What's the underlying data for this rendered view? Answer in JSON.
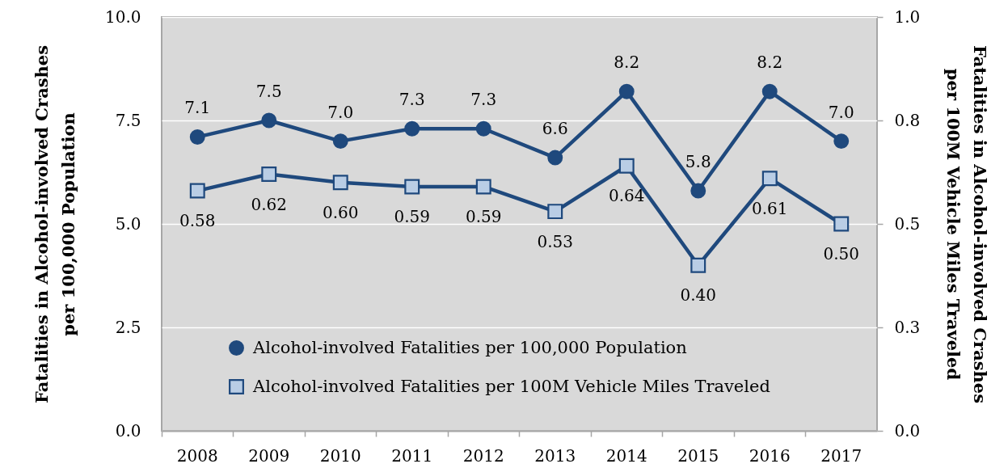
{
  "chart_data": {
    "type": "line",
    "categories": [
      "2008",
      "2009",
      "2010",
      "2011",
      "2012",
      "2013",
      "2014",
      "2015",
      "2016",
      "2017"
    ],
    "ylabel": "Fatalities in Alcohol-involved Crashes\nper 100,000 Population",
    "y2label": "Fatalities in Alcohol-involved Crashes\nper 100M Vehicle Miles Traveled",
    "series": [
      {
        "name": "Alcohol-involved Fatalities per 100,000 Population",
        "color": "#1f497d",
        "marker": "circle",
        "values": [
          7.1,
          7.5,
          7.0,
          7.3,
          7.3,
          6.6,
          8.2,
          5.8,
          8.2,
          7.0
        ],
        "value_labels": [
          "7.1",
          "7.5",
          "7.0",
          "7.3",
          "7.3",
          "6.6",
          "8.2",
          "5.8",
          "8.2",
          "7.0"
        ]
      },
      {
        "name": "Alcohol-involved Fatalities per 100M Vehicle Miles Traveled",
        "color": "#1f497d",
        "colors": [
          "#b9cde5",
          "#b9cde5",
          "#b9cde5",
          "#b9cde5",
          "#b9cde5",
          "#b9cde5",
          "#b9cde5",
          "#b9cde5",
          "#b9cde5",
          "#b9cde5"
        ],
        "marker": "square",
        "axis": "y2",
        "values": [
          0.58,
          0.62,
          0.6,
          0.59,
          0.59,
          0.53,
          0.64,
          0.4,
          0.61,
          0.5
        ],
        "value_labels": [
          "0.58",
          "0.62",
          "0.60",
          "0.59",
          "0.59",
          "0.53",
          "0.64",
          "0.40",
          "0.61",
          "0.50"
        ]
      }
    ],
    "ylim": [
      0,
      10
    ],
    "yticks": [
      {
        "value": 0,
        "label": "0.0"
      },
      2.5,
      {
        "value": 5,
        "label": "5.0"
      },
      7.5,
      {
        "value": 10,
        "label": "10.0"
      }
    ],
    "y2lim": [
      0,
      1
    ],
    "y2ticks": [
      {
        "value": 0,
        "label": "0.0"
      },
      {
        "value": 0.25,
        "label": "0.3"
      },
      0.5,
      {
        "value": 0.75,
        "label": "0.8"
      },
      {
        "value": 1,
        "label": "1.0"
      }
    ],
    "grid": "y",
    "legend": "bottom left",
    "line_style": "solid"
  }
}
